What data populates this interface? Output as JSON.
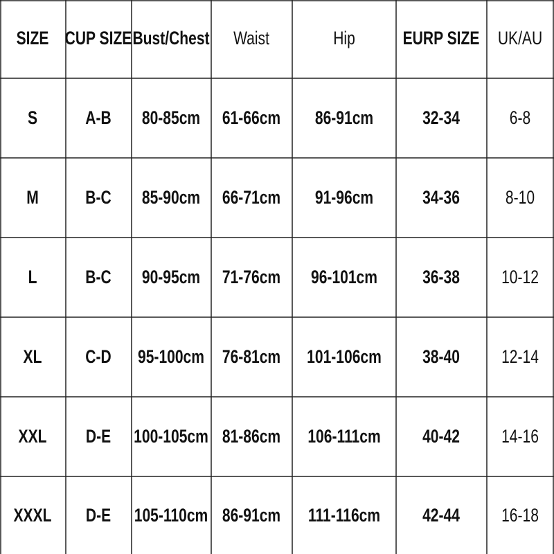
{
  "table": {
    "header": [
      "SIZE",
      "CUP SIZE",
      "Bust/Chest",
      "Waist",
      "Hip",
      "EURP SIZE",
      "UK/AU"
    ],
    "rows": [
      [
        "S",
        "A-B",
        "80-85cm",
        "61-66cm",
        "86-91cm",
        "32-34",
        "6-8"
      ],
      [
        "M",
        "B-C",
        "85-90cm",
        "66-71cm",
        "91-96cm",
        "34-36",
        "8-10"
      ],
      [
        "L",
        "B-C",
        "90-95cm",
        "71-76cm",
        "96-101cm",
        "36-38",
        "10-12"
      ],
      [
        "XL",
        "C-D",
        "95-100cm",
        "76-81cm",
        "101-106cm",
        "38-40",
        "12-14"
      ],
      [
        "XXL",
        "D-E",
        "100-105cm",
        "81-86cm",
        "106-111cm",
        "40-42",
        "14-16"
      ],
      [
        "XXXL",
        "D-E",
        "105-110cm",
        "86-91cm",
        "111-116cm",
        "42-44",
        "16-18"
      ]
    ]
  }
}
